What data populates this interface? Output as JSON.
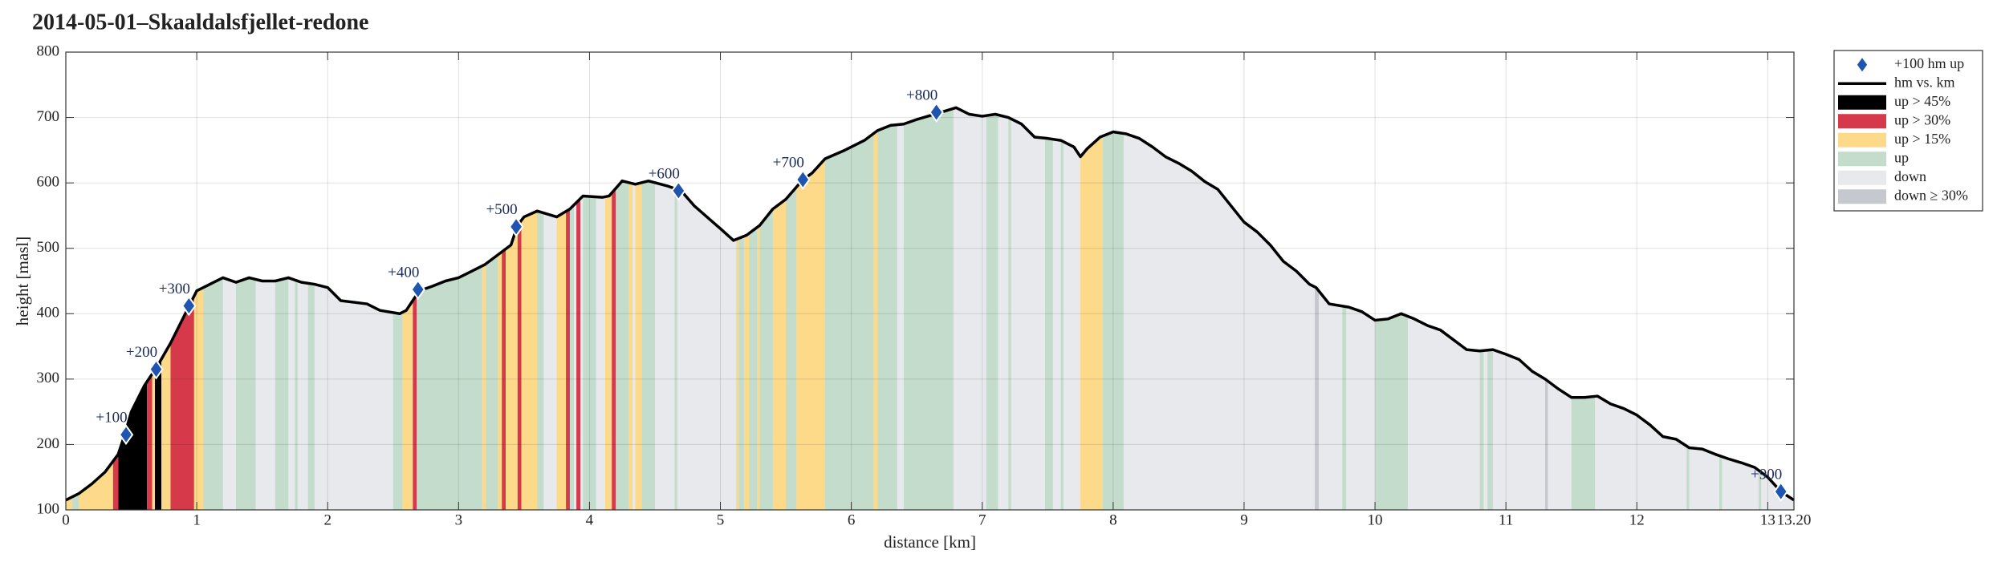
{
  "chart_data": {
    "type": "area",
    "title": "2014-05-01–Skaaldalsfjellet-redone",
    "xlabel": "distance [km]",
    "ylabel": "height [masl]",
    "xlim": [
      0,
      13.2
    ],
    "ylim": [
      100,
      800
    ],
    "xticks": [
      0,
      1,
      2,
      3,
      4,
      5,
      6,
      7,
      8,
      9,
      10,
      11,
      12,
      13,
      {
        "value": 13.2,
        "label": "13.20"
      }
    ],
    "yticks": [
      100,
      200,
      300,
      400,
      500,
      600,
      700,
      800
    ],
    "grid": true,
    "legend": "outside-right",
    "series": [
      {
        "name": "+100 hm up",
        "color": "#1f55b0",
        "marker": "diamond",
        "x": [
          0.46,
          0.69,
          0.94,
          2.69,
          3.44,
          4.68,
          5.63,
          6.65,
          13.1
        ],
        "values": [
          215,
          315,
          412,
          437,
          533,
          588,
          605,
          708,
          128
        ],
        "labels": [
          "+100",
          "+200",
          "+300",
          "+400",
          "+500",
          "+600",
          "+700",
          "+800",
          "+900"
        ]
      },
      {
        "name": "hm vs. km",
        "color": "#000000",
        "x": [
          0,
          0.1,
          0.2,
          0.3,
          0.4,
          0.45,
          0.5,
          0.6,
          0.7,
          0.8,
          0.9,
          0.95,
          1.0,
          1.1,
          1.2,
          1.3,
          1.4,
          1.5,
          1.6,
          1.7,
          1.8,
          1.9,
          2.0,
          2.1,
          2.3,
          2.4,
          2.55,
          2.6,
          2.7,
          2.8,
          2.9,
          3.0,
          3.1,
          3.2,
          3.3,
          3.4,
          3.45,
          3.5,
          3.6,
          3.75,
          3.85,
          3.95,
          4.1,
          4.15,
          4.25,
          4.35,
          4.45,
          4.6,
          4.7,
          4.8,
          5.0,
          5.1,
          5.2,
          5.3,
          5.4,
          5.5,
          5.63,
          5.7,
          5.8,
          5.95,
          6.1,
          6.2,
          6.3,
          6.4,
          6.5,
          6.67,
          6.8,
          6.9,
          7.0,
          7.1,
          7.2,
          7.3,
          7.4,
          7.5,
          7.6,
          7.7,
          7.75,
          7.8,
          7.9,
          8.0,
          8.1,
          8.2,
          8.3,
          8.4,
          8.5,
          8.6,
          8.7,
          8.8,
          8.9,
          9.0,
          9.1,
          9.2,
          9.3,
          9.4,
          9.5,
          9.55,
          9.65,
          9.8,
          9.9,
          10.0,
          10.1,
          10.2,
          10.3,
          10.4,
          10.5,
          10.6,
          10.7,
          10.8,
          10.9,
          11.0,
          11.1,
          11.2,
          11.3,
          11.4,
          11.5,
          11.6,
          11.7,
          11.8,
          11.9,
          12.0,
          12.1,
          12.2,
          12.3,
          12.4,
          12.5,
          12.6,
          12.7,
          12.8,
          12.9,
          13.0,
          13.1,
          13.2
        ],
        "values": [
          115,
          125,
          140,
          158,
          185,
          215,
          250,
          290,
          320,
          355,
          395,
          415,
          435,
          445,
          455,
          448,
          455,
          450,
          450,
          455,
          448,
          445,
          440,
          420,
          415,
          405,
          400,
          405,
          435,
          442,
          450,
          455,
          465,
          475,
          490,
          505,
          535,
          548,
          557,
          548,
          560,
          580,
          578,
          580,
          603,
          598,
          603,
          595,
          588,
          565,
          530,
          512,
          520,
          535,
          560,
          575,
          605,
          615,
          637,
          650,
          665,
          680,
          688,
          690,
          697,
          707,
          715,
          705,
          702,
          705,
          700,
          690,
          670,
          668,
          665,
          655,
          640,
          652,
          670,
          678,
          675,
          668,
          655,
          640,
          630,
          618,
          602,
          590,
          565,
          540,
          525,
          505,
          480,
          465,
          445,
          440,
          415,
          410,
          403,
          390,
          392,
          400,
          392,
          382,
          375,
          360,
          345,
          343,
          345,
          338,
          330,
          312,
          300,
          285,
          272,
          272,
          274,
          262,
          255,
          245,
          230,
          212,
          208,
          195,
          193,
          185,
          178,
          172,
          165,
          150,
          128,
          115
        ]
      }
    ],
    "bands": [
      {
        "name": "up > 45%",
        "color": "#000000",
        "ranges": [
          [
            0.4,
            0.62
          ],
          [
            0.68,
            0.73
          ]
        ]
      },
      {
        "name": "up > 30%",
        "color": "#d63a4a",
        "ranges": [
          [
            0.36,
            0.4
          ],
          [
            0.62,
            0.66
          ],
          [
            0.8,
            0.98
          ],
          [
            2.65,
            2.68
          ],
          [
            3.33,
            3.36
          ],
          [
            3.45,
            3.48
          ],
          [
            3.82,
            3.85
          ],
          [
            3.9,
            3.93
          ],
          [
            4.17,
            4.2
          ]
        ]
      },
      {
        "name": "up > 15%",
        "color": "#fdd98a",
        "ranges": [
          [
            0,
            0.05
          ],
          [
            0.1,
            0.36
          ],
          [
            0.66,
            0.68
          ],
          [
            0.73,
            0.8
          ],
          [
            0.98,
            1.05
          ],
          [
            2.57,
            2.65
          ],
          [
            3.18,
            3.21
          ],
          [
            3.3,
            3.33
          ],
          [
            3.36,
            3.45
          ],
          [
            3.48,
            3.6
          ],
          [
            3.75,
            3.82
          ],
          [
            4.12,
            4.17
          ],
          [
            4.3,
            4.33
          ],
          [
            4.35,
            4.4
          ],
          [
            5.12,
            5.14
          ],
          [
            5.18,
            5.22
          ],
          [
            5.28,
            5.3
          ],
          [
            5.4,
            5.5
          ],
          [
            5.58,
            5.8
          ],
          [
            6.17,
            6.2
          ],
          [
            7.75,
            7.92
          ]
        ]
      },
      {
        "name": "up",
        "color": "#c3dccc",
        "ranges": [
          [
            0.05,
            0.1
          ],
          [
            1.05,
            1.2
          ],
          [
            1.3,
            1.45
          ],
          [
            1.6,
            1.7
          ],
          [
            1.75,
            1.77
          ],
          [
            1.85,
            1.9
          ],
          [
            2.5,
            2.57
          ],
          [
            2.68,
            3.18
          ],
          [
            3.21,
            3.3
          ],
          [
            3.6,
            3.65
          ],
          [
            3.85,
            3.88
          ],
          [
            3.95,
            4.05
          ],
          [
            4.2,
            4.3
          ],
          [
            4.4,
            4.5
          ],
          [
            4.65,
            4.67
          ],
          [
            5.14,
            5.18
          ],
          [
            5.22,
            5.28
          ],
          [
            5.3,
            5.4
          ],
          [
            5.5,
            5.58
          ],
          [
            5.8,
            6.17
          ],
          [
            6.2,
            6.35
          ],
          [
            6.4,
            6.78
          ],
          [
            7.03,
            7.12
          ],
          [
            7.2,
            7.22
          ],
          [
            7.48,
            7.54
          ],
          [
            7.6,
            7.62
          ],
          [
            7.92,
            8.08
          ],
          [
            9.75,
            9.78
          ],
          [
            10.0,
            10.25
          ],
          [
            10.8,
            10.83
          ],
          [
            10.86,
            10.9
          ],
          [
            11.5,
            11.68
          ],
          [
            12.38,
            12.4
          ],
          [
            12.63,
            12.65
          ],
          [
            12.93,
            12.95
          ]
        ]
      },
      {
        "name": "down",
        "color": "#e8e9ec",
        "ranges": [
          [
            0,
            13.2
          ]
        ]
      },
      {
        "name": "down ≥ 30%",
        "color": "#c5c8ce",
        "ranges": [
          [
            9.54,
            9.57
          ],
          [
            11.3,
            11.32
          ]
        ]
      }
    ]
  }
}
